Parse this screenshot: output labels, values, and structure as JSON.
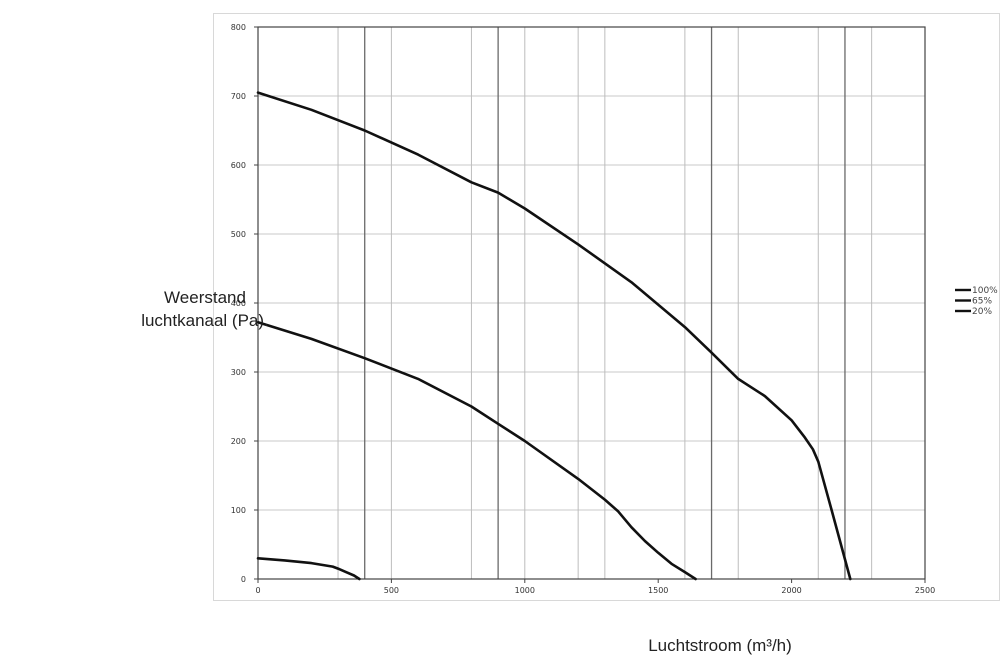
{
  "chart_data": {
    "type": "line",
    "xlabel": "Luchtstroom (m³/h)",
    "ylabel_lines": [
      "Weerstand",
      "luchtkanaal (Pa)."
    ],
    "xlim": [
      0,
      2500
    ],
    "ylim": [
      0,
      800
    ],
    "xticks": [
      0,
      500,
      1000,
      1500,
      2000,
      2500
    ],
    "yticks": [
      0,
      100,
      200,
      300,
      400,
      500,
      600,
      700,
      800
    ],
    "x_gridlines": [
      300,
      400,
      500,
      800,
      900,
      1000,
      1200,
      1300,
      1600,
      1700,
      1800,
      2100,
      2200,
      2300
    ],
    "x_gridlines_major": [
      400,
      900,
      1700,
      2200
    ],
    "y_gridlines": [
      100,
      200,
      300,
      400,
      500,
      600,
      700
    ],
    "grid": true,
    "legend_position": "right",
    "line_color": "#111111",
    "series": [
      {
        "name": "100%",
        "x": [
          0,
          200,
          400,
          600,
          800,
          900,
          1000,
          1200,
          1400,
          1600,
          1700,
          1800,
          1900,
          2000,
          2050,
          2080,
          2100,
          2150,
          2220
        ],
        "y": [
          705,
          680,
          650,
          615,
          575,
          560,
          537,
          485,
          430,
          365,
          328,
          290,
          265,
          230,
          205,
          188,
          170,
          100,
          0
        ]
      },
      {
        "name": "65%",
        "x": [
          0,
          200,
          400,
          600,
          800,
          900,
          1000,
          1200,
          1300,
          1350,
          1400,
          1450,
          1500,
          1550,
          1600,
          1640
        ],
        "y": [
          372,
          348,
          320,
          290,
          250,
          225,
          200,
          145,
          115,
          98,
          75,
          55,
          38,
          22,
          10,
          0
        ]
      },
      {
        "name": "20%",
        "x": [
          0,
          100,
          200,
          280,
          300,
          330,
          360,
          380
        ],
        "y": [
          30,
          27,
          23,
          18,
          15,
          10,
          5,
          0
        ]
      }
    ]
  }
}
